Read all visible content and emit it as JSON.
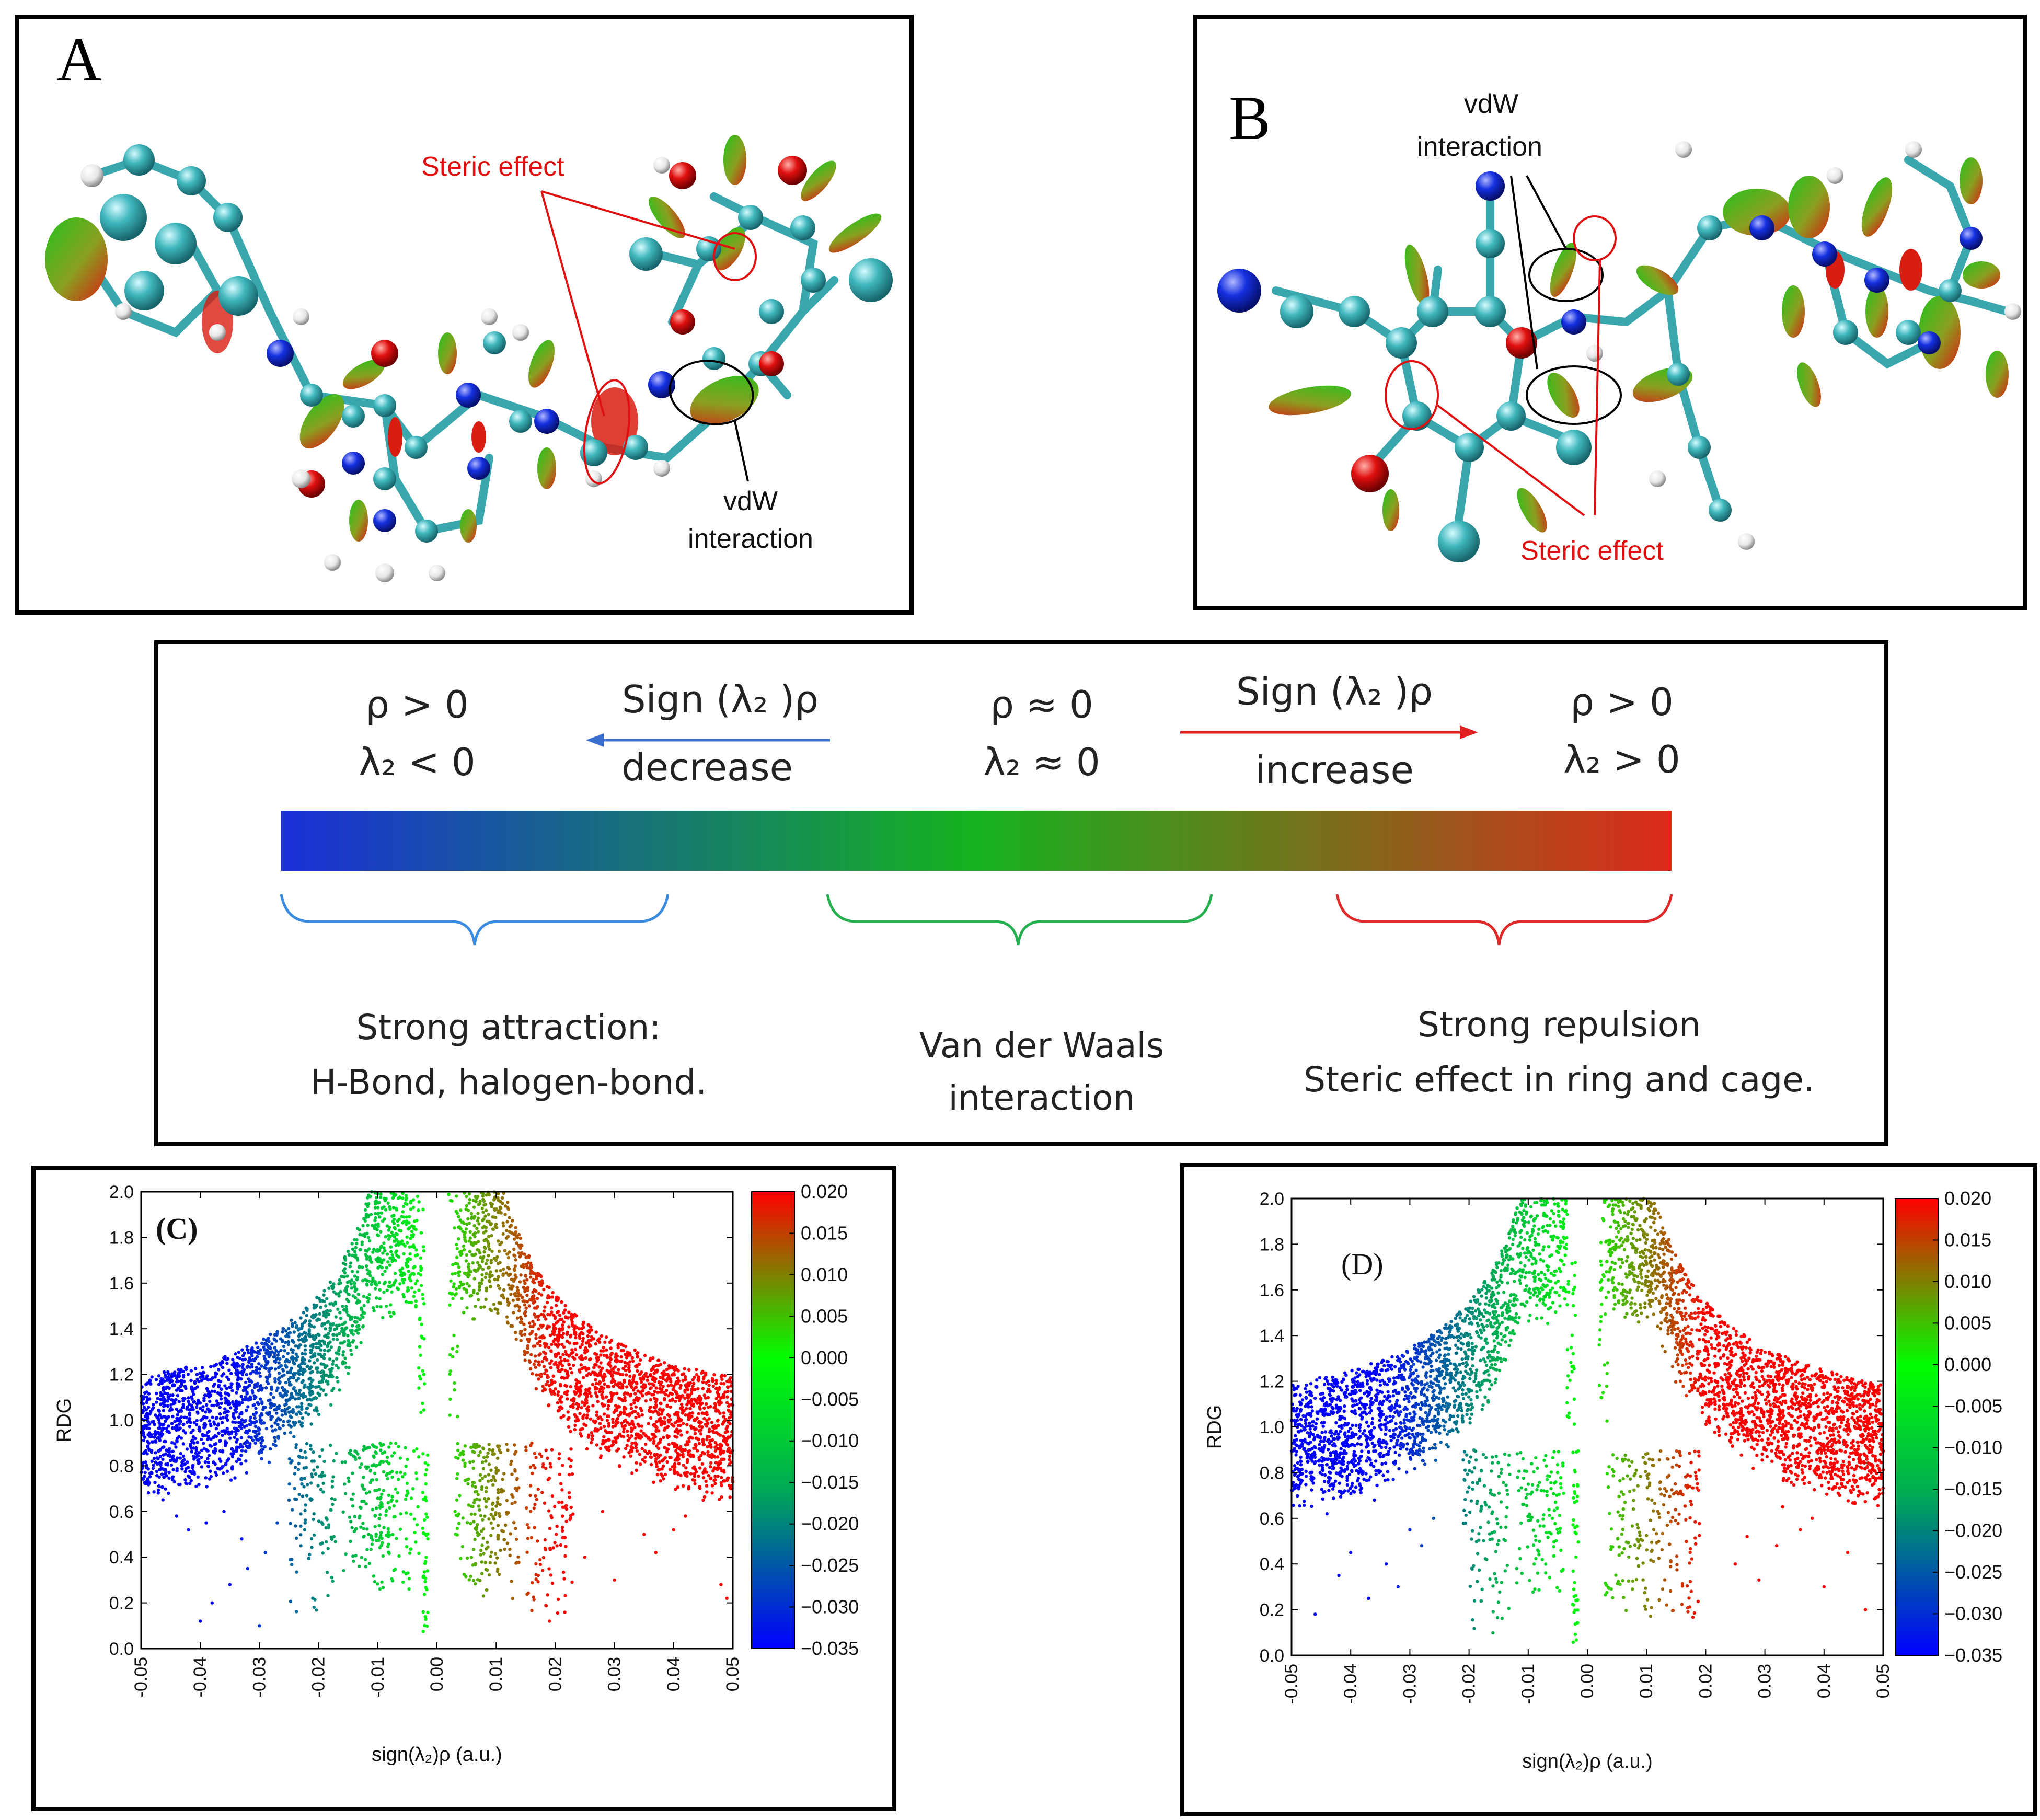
{
  "panel_a": {
    "letter": "A",
    "steric_label": "Steric effect",
    "vdw_label_line1": "vdW",
    "vdw_label_line2": "interaction"
  },
  "panel_b": {
    "letter": "B",
    "vdw_label_line1": "vdW",
    "vdw_label_line2": "interaction",
    "steric_label": "Steric effect"
  },
  "legend": {
    "left_cond1": "ρ  > 0",
    "left_cond2": "λ₂ < 0",
    "decrease_top": "Sign (λ₂ )ρ",
    "decrease_bottom": "decrease",
    "mid_cond1": "ρ  ≈ 0",
    "mid_cond2": "λ₂ ≈ 0",
    "increase_top": "Sign (λ₂ )ρ",
    "increase_bottom": "increase",
    "right_cond1": "ρ  > 0",
    "right_cond2": "λ₂ > 0",
    "attraction_line1": "Strong attraction:",
    "attraction_line2": "H-Bond, halogen-bond.",
    "vdw_line1": "Van der Waals",
    "vdw_line2": "interaction",
    "repulsion_line1": "Strong repulsion",
    "repulsion_line2": "Steric effect in ring and cage.",
    "colors": {
      "blue": "#1a2ed8",
      "green": "#15b31e",
      "red": "#dd2a1a"
    }
  },
  "chart_data": [
    {
      "type": "scatter",
      "panel_label": "(C)",
      "xlabel": "sign(λ₂)ρ (a.u.)",
      "ylabel": "RDG",
      "xlim": [
        -0.05,
        0.05
      ],
      "ylim": [
        0.0,
        2.0
      ],
      "xticks": [
        "-0.05",
        "-0.04",
        "-0.03",
        "-0.02",
        "-0.01",
        "0.00",
        "0.01",
        "0.02",
        "0.03",
        "0.04",
        "0.05"
      ],
      "yticks": [
        "0.0",
        "0.2",
        "0.4",
        "0.6",
        "0.8",
        "1.0",
        "1.2",
        "1.4",
        "1.6",
        "1.8",
        "2.0"
      ],
      "colorbar_range": [
        -0.035,
        0.02
      ],
      "colorbar_ticks": [
        "0.020",
        "0.015",
        "0.010",
        "0.005",
        "0.000",
        "−0.005",
        "−0.010",
        "−0.015",
        "−0.020",
        "−0.025",
        "−0.030",
        "−0.035"
      ],
      "spikes": [
        {
          "x": -0.021,
          "rdg_min": 0.15
        },
        {
          "x": -0.012,
          "rdg_min": 0.3
        },
        {
          "x": -0.007,
          "rdg_min": 0.25
        },
        {
          "x": 0.007,
          "rdg_min": 0.25
        },
        {
          "x": 0.01,
          "rdg_min": 0.2
        },
        {
          "x": 0.019,
          "rdg_min": 0.08
        }
      ],
      "sparse_points": [
        [
          -0.04,
          0.12
        ],
        [
          -0.038,
          0.2
        ],
        [
          -0.035,
          0.28
        ],
        [
          -0.03,
          0.1
        ],
        [
          -0.032,
          0.35
        ],
        [
          -0.042,
          0.52
        ],
        [
          -0.039,
          0.55
        ],
        [
          -0.036,
          0.6
        ],
        [
          -0.033,
          0.48
        ],
        [
          -0.029,
          0.42
        ],
        [
          -0.027,
          0.55
        ],
        [
          -0.025,
          0.65
        ],
        [
          -0.044,
          0.58
        ],
        [
          -0.023,
          0.45
        ],
        [
          0.025,
          0.4
        ],
        [
          0.03,
          0.3
        ],
        [
          0.035,
          0.5
        ],
        [
          0.037,
          0.42
        ],
        [
          0.04,
          0.52
        ],
        [
          0.045,
          0.65
        ],
        [
          0.048,
          0.28
        ],
        [
          0.049,
          0.22
        ],
        [
          0.028,
          0.6
        ],
        [
          0.042,
          0.58
        ]
      ]
    },
    {
      "type": "scatter",
      "panel_label": "(D)",
      "xlabel": "sign(λ₂)ρ (a.u.)",
      "ylabel": "RDG",
      "xlim": [
        -0.05,
        0.05
      ],
      "ylim": [
        0.0,
        2.0
      ],
      "xticks": [
        "-0.05",
        "-0.04",
        "-0.03",
        "-0.02",
        "-0.01",
        "0.00",
        "0.01",
        "0.02",
        "0.03",
        "0.04",
        "0.05"
      ],
      "yticks": [
        "0.0",
        "0.2",
        "0.4",
        "0.6",
        "0.8",
        "1.0",
        "1.2",
        "1.4",
        "1.6",
        "1.8",
        "2.0"
      ],
      "colorbar_range": [
        -0.035,
        0.02
      ],
      "colorbar_ticks": [
        "0.020",
        "0.015",
        "0.010",
        "0.005",
        "0.000",
        "−0.005",
        "−0.010",
        "−0.015",
        "−0.020",
        "−0.025",
        "−0.030",
        "−0.035"
      ],
      "spikes": [
        {
          "x": -0.017,
          "rdg_min": 0.05
        },
        {
          "x": -0.008,
          "rdg_min": 0.25
        },
        {
          "x": 0.007,
          "rdg_min": 0.15
        },
        {
          "x": 0.015,
          "rdg_min": 0.12
        }
      ],
      "sparse_points": [
        [
          -0.046,
          0.18
        ],
        [
          -0.042,
          0.35
        ],
        [
          -0.04,
          0.45
        ],
        [
          -0.037,
          0.25
        ],
        [
          -0.034,
          0.4
        ],
        [
          -0.032,
          0.3
        ],
        [
          -0.03,
          0.55
        ],
        [
          -0.044,
          0.62
        ],
        [
          -0.041,
          0.72
        ],
        [
          -0.036,
          0.68
        ],
        [
          -0.028,
          0.48
        ],
        [
          -0.026,
          0.6
        ],
        [
          0.025,
          0.4
        ],
        [
          0.029,
          0.33
        ],
        [
          0.032,
          0.48
        ],
        [
          0.036,
          0.55
        ],
        [
          0.04,
          0.3
        ],
        [
          0.044,
          0.45
        ],
        [
          0.047,
          0.2
        ],
        [
          0.033,
          0.65
        ],
        [
          0.038,
          0.6
        ],
        [
          0.027,
          0.52
        ]
      ]
    }
  ]
}
